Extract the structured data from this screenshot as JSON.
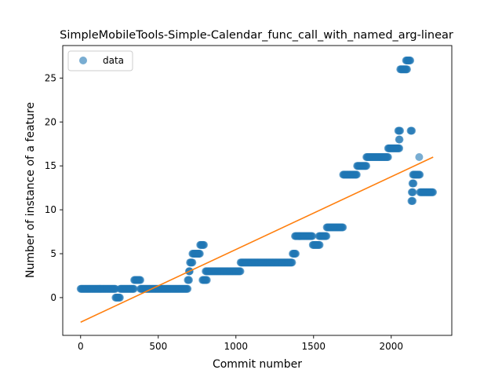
{
  "chart_data": {
    "type": "scatter",
    "title": "SimpleMobileTools-Simple-Calendar_func_call_with_named_arg-linear",
    "xlabel": "Commit number",
    "ylabel": "Number of instance of a feature",
    "xlim": [
      -115,
      2390
    ],
    "ylim": [
      -4.3,
      28.7
    ],
    "xticks": [
      0,
      500,
      1000,
      1500,
      2000
    ],
    "yticks": [
      0,
      5,
      10,
      15,
      20,
      25
    ],
    "grid": false,
    "legend": {
      "position": "top-left",
      "entries": [
        "data"
      ]
    },
    "colors": {
      "data": "#1f77b4",
      "fit": "#ff7f0e"
    },
    "series": [
      {
        "name": "data",
        "kind": "scatter",
        "segments": [
          {
            "x_start": 0,
            "x_end": 225,
            "y": 1
          },
          {
            "x_start": 225,
            "x_end": 255,
            "y": 0
          },
          {
            "x_start": 255,
            "x_end": 345,
            "y": 1
          },
          {
            "x_start": 345,
            "x_end": 385,
            "y": 2
          },
          {
            "x_start": 385,
            "x_end": 690,
            "y": 1
          },
          {
            "x_start": 690,
            "x_end": 698,
            "y": 2
          },
          {
            "x_start": 698,
            "x_end": 704,
            "y": 3
          },
          {
            "x_start": 704,
            "x_end": 720,
            "y": 4
          },
          {
            "x_start": 720,
            "x_end": 770,
            "y": 5
          },
          {
            "x_start": 770,
            "x_end": 795,
            "y": 6
          },
          {
            "x_start": 785,
            "x_end": 815,
            "y": 2
          },
          {
            "x_start": 805,
            "x_end": 1030,
            "y": 3
          },
          {
            "x_start": 1030,
            "x_end": 1365,
            "y": 4
          },
          {
            "x_start": 1365,
            "x_end": 1385,
            "y": 5
          },
          {
            "x_start": 1380,
            "x_end": 1495,
            "y": 7
          },
          {
            "x_start": 1495,
            "x_end": 1540,
            "y": 6
          },
          {
            "x_start": 1535,
            "x_end": 1585,
            "y": 7
          },
          {
            "x_start": 1585,
            "x_end": 1690,
            "y": 8
          },
          {
            "x_start": 1690,
            "x_end": 1780,
            "y": 14
          },
          {
            "x_start": 1780,
            "x_end": 1840,
            "y": 15
          },
          {
            "x_start": 1840,
            "x_end": 1980,
            "y": 16
          },
          {
            "x_start": 1980,
            "x_end": 2055,
            "y": 17
          },
          {
            "x_start": 2045,
            "x_end": 2058,
            "y": 19
          },
          {
            "x_start": 2050,
            "x_end": 2055,
            "y": 18
          },
          {
            "x_start": 2058,
            "x_end": 2105,
            "y": 26
          },
          {
            "x_start": 2095,
            "x_end": 2125,
            "y": 27
          },
          {
            "x_start": 2125,
            "x_end": 2135,
            "y": 19
          },
          {
            "x_start": 2130,
            "x_end": 2138,
            "y": 11
          },
          {
            "x_start": 2132,
            "x_end": 2140,
            "y": 12
          },
          {
            "x_start": 2136,
            "x_end": 2144,
            "y": 13
          },
          {
            "x_start": 2140,
            "x_end": 2185,
            "y": 14
          },
          {
            "x_start": 2185,
            "x_end": 2270,
            "y": 12
          }
        ],
        "points": [
          {
            "x": 700,
            "y": 3
          },
          {
            "x": 2180,
            "y": 16
          }
        ]
      },
      {
        "name": "",
        "kind": "line",
        "x": [
          0,
          2270
        ],
        "y": [
          -2.8,
          16.0
        ]
      }
    ]
  }
}
